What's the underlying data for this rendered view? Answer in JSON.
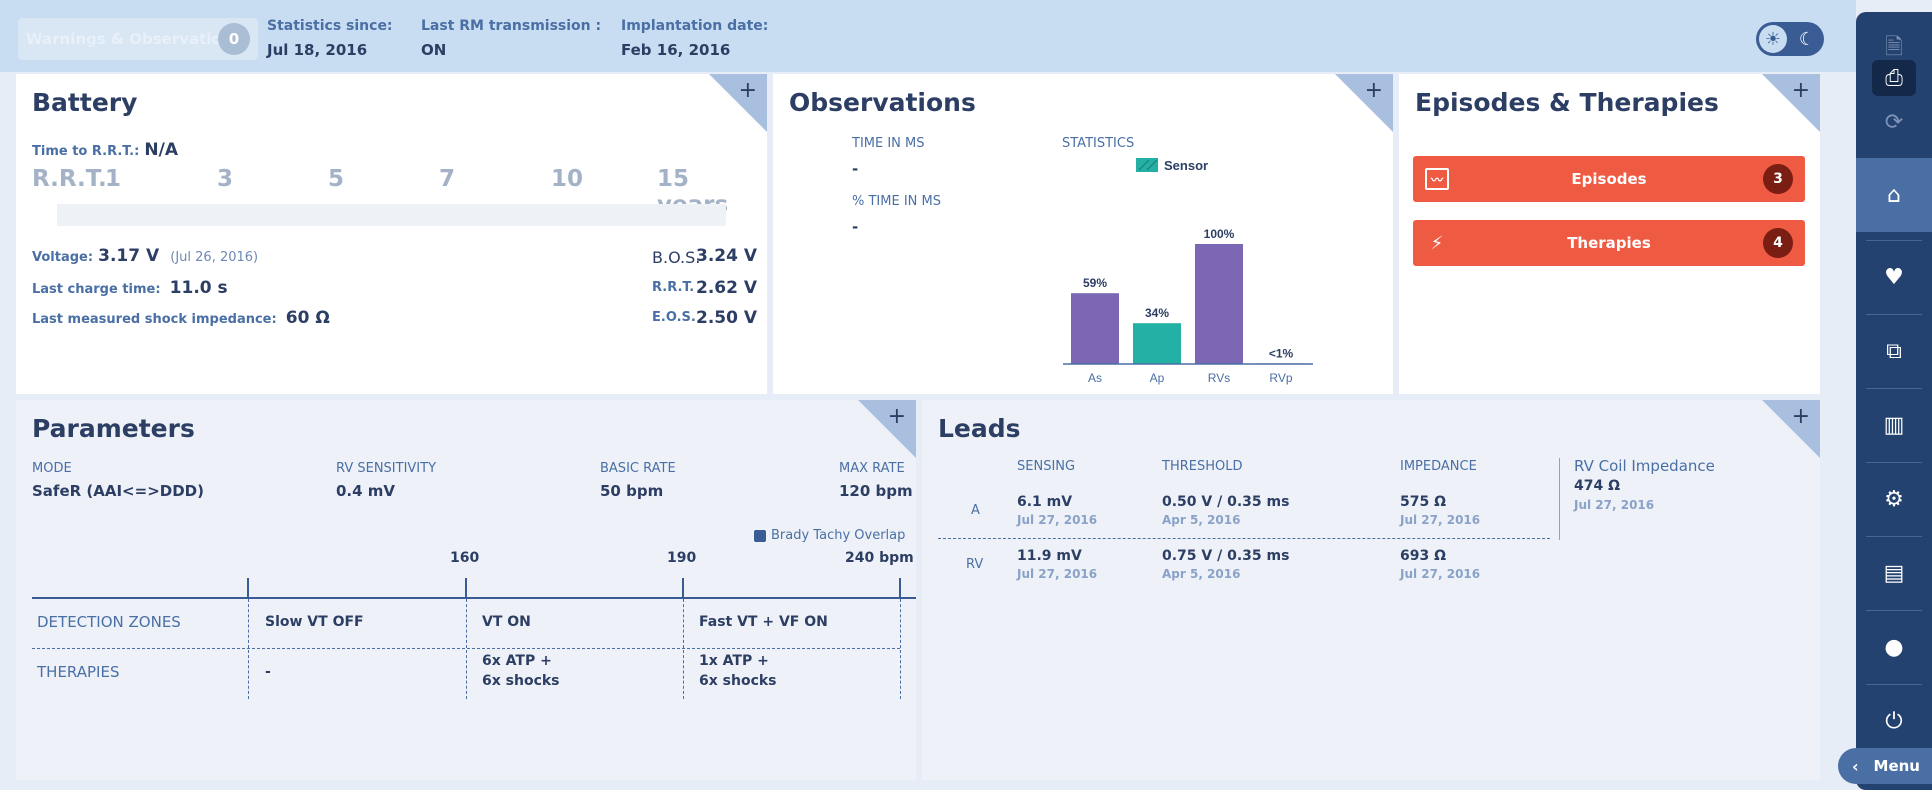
{
  "header": {
    "warnings_label": "Warnings & Observations",
    "warnings_count": "0",
    "stats_since_label": "Statistics since:",
    "stats_since_value": "Jul 18, 2016",
    "last_rm_label": "Last RM transmission :",
    "last_rm_value": "ON",
    "implant_label": "Implantation date:",
    "implant_value": "Feb 16, 2016"
  },
  "battery": {
    "title": "Battery",
    "time_to_rrt_label": "Time to R.R.T.:",
    "time_to_rrt_value": "N/A",
    "scale_start": "R.R.T.",
    "scale_ticks": [
      "1",
      "3",
      "5",
      "7",
      "10",
      "15 years"
    ],
    "voltage_label": "Voltage:",
    "voltage_value": "3.17 V",
    "voltage_date": "(Jul 26, 2016)",
    "charge_label": "Last charge time:",
    "charge_value": "11.0 s",
    "impedance_label": "Last measured shock impedance:",
    "impedance_value": "60 Ω",
    "bos_label": "B.O.S.",
    "bos_value": "3.24 V",
    "rrt_label": "R.R.T.",
    "rrt_value": "2.62 V",
    "eos_label": "E.O.S.",
    "eos_value": "2.50 V"
  },
  "observations": {
    "title": "Observations",
    "time_in_ms_label": "TIME IN MS",
    "time_in_ms_value": "-",
    "pct_time_in_ms_label": "% TIME IN MS",
    "pct_time_in_ms_value": "-",
    "statistics_label": "STATISTICS",
    "legend_sensor": "Sensor"
  },
  "chart_data": {
    "type": "bar",
    "categories": [
      "As",
      "Ap",
      "RVs",
      "RVp"
    ],
    "values": [
      59,
      34,
      100,
      0.5
    ],
    "data_labels": [
      "59%",
      "34%",
      "100%",
      "<1%"
    ],
    "colors": [
      "#7b67b4",
      "#25b0a5",
      "#7b67b4",
      "#7b67b4"
    ],
    "legend": [
      "Sensor"
    ],
    "ylim": [
      0,
      100
    ]
  },
  "episodes": {
    "title": "Episodes & Therapies",
    "episodes_label": "Episodes",
    "episodes_count": "3",
    "therapies_label": "Therapies",
    "therapies_count": "4"
  },
  "parameters": {
    "title": "Parameters",
    "mode_label": "MODE",
    "mode_value": "SafeR (AAI<=>DDD)",
    "rv_sens_label": "RV SENSITIVITY",
    "rv_sens_value": "0.4 mV",
    "basic_rate_label": "BASIC RATE",
    "basic_rate_value": "50 bpm",
    "max_rate_label": "MAX RATE",
    "max_rate_value": "120 bpm",
    "overlap_label": "Brady Tachy Overlap",
    "scale_160": "160",
    "scale_190": "190",
    "scale_240": "240 bpm",
    "detection_zones_label": "DETECTION ZONES",
    "therapies_label": "THERAPIES",
    "zone1": "Slow VT OFF",
    "zone2": "VT ON",
    "zone3": "Fast VT + VF ON",
    "therapy1": "-",
    "therapy2_line1": "6x ATP  +",
    "therapy2_line2": "6x shocks",
    "therapy3_line1": "1x ATP  +",
    "therapy3_line2": "6x shocks"
  },
  "leads": {
    "title": "Leads",
    "sensing_label": "SENSING",
    "threshold_label": "THRESHOLD",
    "impedance_label": "IMPEDANCE",
    "rv_coil_label": "RV Coil Impedance",
    "rv_coil_value": "474 Ω",
    "rv_coil_date": "Jul 27, 2016",
    "rows": [
      {
        "chamber": "A",
        "sensing": "6.1 mV",
        "sensing_date": "Jul 27, 2016",
        "threshold": "0.50 V / 0.35 ms",
        "threshold_date": "Apr 5, 2016",
        "impedance": "575 Ω",
        "impedance_date": "Jul 27, 2016"
      },
      {
        "chamber": "RV",
        "sensing": "11.9 mV",
        "sensing_date": "Jul 27, 2016",
        "threshold": "0.75 V / 0.35 ms",
        "threshold_date": "Apr 5, 2016",
        "impedance": "693 Ω",
        "impedance_date": "Jul 27, 2016"
      }
    ]
  },
  "sidebar": {
    "menu_label": "Menu"
  }
}
